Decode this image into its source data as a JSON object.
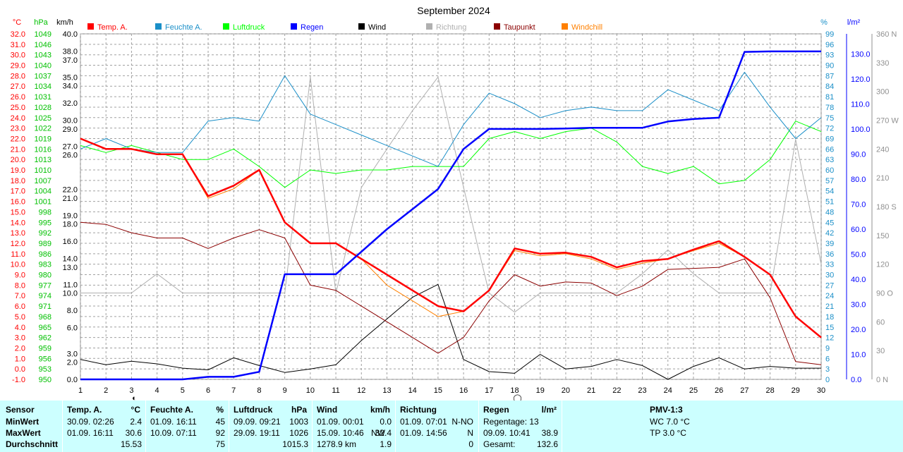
{
  "title": "September 2024",
  "axis_units": {
    "temp": "°C",
    "pressure": "hPa",
    "wind": "km/h",
    "humidity": "%",
    "rain": "l/m²"
  },
  "legend": [
    {
      "label": "Temp. A.",
      "color": "#ff0000"
    },
    {
      "label": "Feuchte A.",
      "color": "#1a8fc8"
    },
    {
      "label": "Luftdruck",
      "color": "#00ff00"
    },
    {
      "label": "Regen",
      "color": "#0000ff"
    },
    {
      "label": "Wind",
      "color": "#000000"
    },
    {
      "label": "Richtung",
      "color": "#b0b0b0"
    },
    {
      "label": "Taupunkt",
      "color": "#8b0000"
    },
    {
      "label": "Windchill",
      "color": "#ff8000"
    }
  ],
  "colors": {
    "temp": "#ff0000",
    "humidity": "#1a8fc8",
    "pressure": "#00ff00",
    "rain": "#0000ff",
    "wind": "#000000",
    "direction": "#b0b0b0",
    "dewpoint": "#8b0000",
    "windchill": "#ff8000",
    "stats_bg": "#ccffff"
  },
  "chart_data": {
    "type": "line",
    "x": [
      1,
      2,
      3,
      4,
      5,
      6,
      7,
      8,
      9,
      10,
      11,
      12,
      13,
      14,
      15,
      16,
      17,
      18,
      19,
      20,
      21,
      22,
      23,
      24,
      25,
      26,
      27,
      28,
      29,
      30
    ],
    "xlim": [
      1,
      30
    ],
    "axes": {
      "temp": {
        "min": -1.0,
        "max": 32.0,
        "ticks": [
          "32.0",
          "31.0",
          "30.0",
          "29.0",
          "28.0",
          "27.0",
          "26.0",
          "25.0",
          "24.0",
          "23.0",
          "22.0",
          "21.0",
          "20.0",
          "19.0",
          "18.0",
          "17.0",
          "16.0",
          "15.0",
          "14.0",
          "13.0",
          "12.0",
          "11.0",
          "10.0",
          "9.0",
          "8.0",
          "7.0",
          "6.0",
          "5.0",
          "4.0",
          "3.0",
          "2.0",
          "1.0",
          "0.0",
          "-1.0"
        ]
      },
      "pressure": {
        "min": 950,
        "max": 1049,
        "ticks": [
          "1049",
          "1046",
          "1043",
          "1040",
          "1037",
          "1034",
          "1031",
          "1028",
          "1025",
          "1022",
          "1019",
          "1016",
          "1013",
          "1010",
          "1007",
          "1004",
          "1001",
          "998",
          "995",
          "992",
          "989",
          "986",
          "983",
          "980",
          "977",
          "974",
          "971",
          "968",
          "965",
          "962",
          "959",
          "956",
          "953",
          "950"
        ]
      },
      "wind": {
        "min": 0,
        "max": 40,
        "ticks": [
          0,
          2,
          3,
          6,
          8,
          10,
          11,
          13,
          14,
          16,
          18,
          19,
          21,
          22,
          26,
          27,
          29,
          30,
          32,
          34,
          35,
          37,
          38,
          40
        ],
        "tick_labels": [
          "0.0",
          "2.0",
          "3.0",
          "6.0",
          "8.0",
          "10.0",
          "11.0",
          "13.0",
          "14.0",
          "16.0",
          "18.0",
          "19.0",
          "21.0",
          "22.0",
          "26.0",
          "27.0",
          "29.0",
          "30.0",
          "32.0",
          "34.0",
          "35.0",
          "37.0",
          "38.0",
          "40.0"
        ]
      },
      "humidity": {
        "min": 0,
        "max": 99,
        "ticks": [
          "99",
          "96",
          "93",
          "90",
          "87",
          "84",
          "81",
          "78",
          "75",
          "72",
          "69",
          "66",
          "63",
          "60",
          "57",
          "54",
          "51",
          "48",
          "45",
          "42",
          "39",
          "36",
          "33",
          "30",
          "27",
          "24",
          "21",
          "18",
          "15",
          "12",
          "9",
          "6",
          "3",
          "0"
        ]
      },
      "rain": {
        "min": 0,
        "max": 138,
        "ticks": [
          0,
          10,
          20,
          30,
          40,
          50,
          60,
          70,
          80,
          90,
          100,
          110,
          120,
          130
        ],
        "tick_labels": [
          "0.0",
          "10.0",
          "20.0",
          "30.0",
          "40.0",
          "50.0",
          "60.0",
          "70.0",
          "80.0",
          "90.0",
          "100.0",
          "110.0",
          "120.0",
          "130.0"
        ]
      },
      "direction": {
        "min": 0,
        "max": 360,
        "ticks": [
          0,
          30,
          60,
          90,
          120,
          150,
          180,
          210,
          240,
          270,
          300,
          330,
          360
        ],
        "tick_labels": [
          "0 N",
          "30",
          "60",
          "90 O",
          "120",
          "150",
          "180 S",
          "210",
          "240",
          "270 W",
          "300",
          "330",
          "360 N"
        ]
      }
    },
    "series": [
      {
        "name": "Temp. A.",
        "axis": "temp",
        "values": [
          22.0,
          21.0,
          21.0,
          20.5,
          20.5,
          16.5,
          17.5,
          19.0,
          14.0,
          12.0,
          12.0,
          10.5,
          9.0,
          7.5,
          6.0,
          5.5,
          7.5,
          11.5,
          11.0,
          11.1,
          10.7,
          9.7,
          10.3,
          10.5,
          11.4,
          12.2,
          10.7,
          9.0,
          5.0,
          3.0
        ],
        "width": 2.5
      },
      {
        "name": "Feuchte A.",
        "axis": "humidity",
        "values": [
          66,
          69,
          66,
          65,
          65,
          74,
          75,
          74,
          87,
          76,
          73,
          70,
          67,
          64,
          61,
          73,
          82,
          79,
          75,
          77,
          78,
          77,
          77,
          83,
          80,
          77,
          88,
          78,
          69,
          75
        ],
        "width": 1
      },
      {
        "name": "Luftdruck",
        "axis": "pressure",
        "values": [
          1017,
          1015,
          1017,
          1015,
          1013,
          1013,
          1016,
          1011,
          1005,
          1010,
          1009,
          1010,
          1010,
          1011,
          1011,
          1011,
          1019,
          1021,
          1019,
          1021,
          1022,
          1018,
          1011,
          1009,
          1011,
          1006,
          1007,
          1013,
          1024,
          1021
        ],
        "width": 1
      },
      {
        "name": "Regen",
        "axis": "rain",
        "values": [
          0,
          0,
          0,
          0,
          0,
          1.0,
          1.0,
          3.0,
          42.0,
          42.0,
          42.0,
          51.0,
          60.0,
          68.0,
          76.0,
          92.0,
          100.0,
          100.0,
          100.0,
          100.2,
          100.5,
          100.5,
          100.5,
          103.0,
          104.0,
          104.5,
          130.8,
          131.0,
          131.0,
          131.0
        ],
        "width": 2.5
      },
      {
        "name": "Wind",
        "axis": "wind",
        "values": [
          2.3,
          1.7,
          2.1,
          1.8,
          1.3,
          1.1,
          2.5,
          1.6,
          0.8,
          1.2,
          1.7,
          4.5,
          7.0,
          9.5,
          11.0,
          2.3,
          0.9,
          0.7,
          2.9,
          1.2,
          1.5,
          2.3,
          1.6,
          0,
          1.5,
          2.5,
          1.2,
          1.5,
          1.3,
          1.3
        ],
        "width": 1
      },
      {
        "name": "Richtung",
        "axis": "direction",
        "values": [
          90,
          90,
          90,
          110,
          90,
          90,
          90,
          90,
          90,
          315,
          90,
          200,
          240,
          280,
          315,
          200,
          90,
          70,
          90,
          90,
          90,
          90,
          110,
          135,
          110,
          90,
          90,
          90,
          250,
          120
        ],
        "width": 1
      },
      {
        "name": "Taupunkt",
        "axis": "temp",
        "values": [
          14.0,
          13.8,
          13.0,
          12.5,
          12.5,
          11.5,
          12.5,
          13.3,
          12.5,
          8.0,
          7.5,
          6.0,
          4.5,
          3.0,
          1.5,
          3.0,
          6.5,
          9.0,
          7.9,
          8.3,
          8.2,
          7.0,
          7.9,
          9.5,
          9.6,
          9.7,
          10.5,
          6.8,
          0.7,
          0.4
        ],
        "width": 1
      },
      {
        "name": "Windchill",
        "axis": "temp",
        "values": [
          22.0,
          21.0,
          21.0,
          20.5,
          20.5,
          16.3,
          17.2,
          19.0,
          14.0,
          12.0,
          12.0,
          10.5,
          8.0,
          6.5,
          5.0,
          5.5,
          7.5,
          11.3,
          10.8,
          11.0,
          10.5,
          9.5,
          10.1,
          10.5,
          11.3,
          12.0,
          10.7,
          9.0,
          5.0,
          3.0
        ],
        "width": 1
      }
    ],
    "grid": true,
    "legend_placement": "top",
    "markers": [
      {
        "day": 3,
        "symbol": "◐"
      },
      {
        "day": 18,
        "symbol": "◯"
      }
    ]
  },
  "stats": {
    "sensor": {
      "header": "Sensor",
      "min": "MinWert",
      "max": "MaxWert",
      "avg": "Durchschnitt"
    },
    "temp": {
      "header": "Temp. A.",
      "unit": "°C",
      "min_time": "30.09.  02:26",
      "min_val": "2.4",
      "max_time": "01.09.  16:11",
      "max_val": "30.6",
      "avg": "15.53"
    },
    "humidity": {
      "header": "Feuchte A.",
      "unit": "%",
      "min_time": "01.09.  16:11",
      "min_val": "45",
      "max_time": "10.09.  07:11",
      "max_val": "92",
      "avg": "75"
    },
    "pressure": {
      "header": "Luftdruck",
      "unit": "hPa",
      "min_time": "09.09.  09:21",
      "min_val": "1003",
      "max_time": "29.09.  19:11",
      "max_val": "1026",
      "avg": "1015.3"
    },
    "wind": {
      "header": "Wind",
      "unit": "km/h",
      "min_time": "01.09.  00:01",
      "min_val": "0.0",
      "max_time": "15.09.  10:46",
      "max_dir": "NW",
      "max_val": "32.4",
      "avg_label": "1278.9 km",
      "avg": "1.9"
    },
    "direction": {
      "header": "Richtung",
      "min_time": "01.09.  07:01",
      "min_val": "N-NO",
      "max_time": "01.09.  14:56",
      "max_val": "N",
      "avg": "0"
    },
    "rain": {
      "header": "Regen",
      "unit": "l/m²",
      "rain_days": "Regentage: 13",
      "max_time": "09.09.  10:41",
      "max_val": "38.9",
      "total_label": "Gesamt:",
      "total": "132.6"
    },
    "pmv": {
      "header": "PMV-1:3",
      "wc": "WC 7.0 °C",
      "tp": "TP 3.0 °C"
    }
  }
}
